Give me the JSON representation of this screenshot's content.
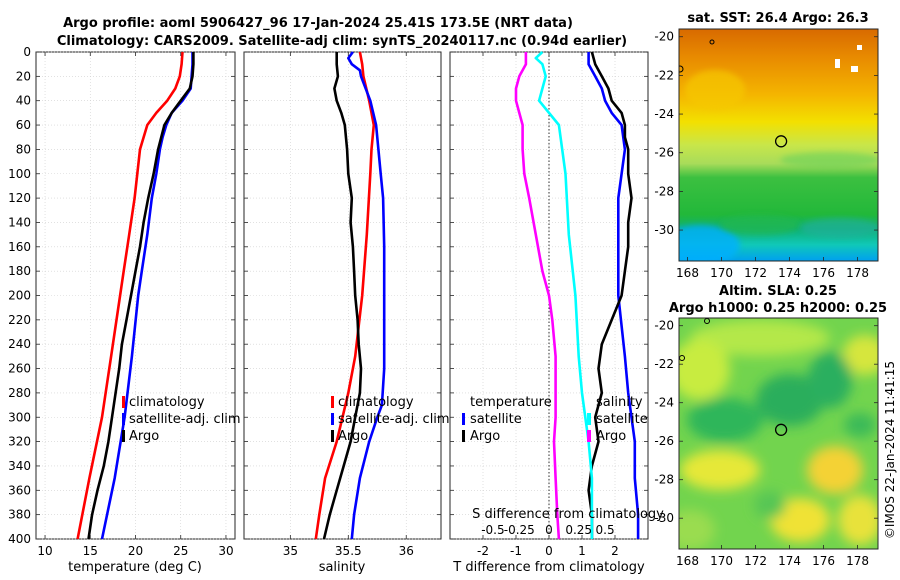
{
  "header": {
    "title_line1": "Argo profile: aoml 5906427_96 17-Jan-2024 25.41S 173.5E (NRT data)",
    "title_line2": "Climatology: CARS2009. Satellite-adj clim: synTS_20240117.nc (0.94d earlier)"
  },
  "colors": {
    "climatology": "#ff0000",
    "satellite": "#0000ff",
    "argo": "#000000",
    "t_diff": "#ff00ff",
    "s_diff": "#00ffff"
  },
  "chart_data": [
    {
      "type": "line",
      "title": "",
      "xlabel": "temperature (deg C)",
      "ylabel": "",
      "xlim": [
        9,
        31
      ],
      "ylim": [
        400,
        0
      ],
      "xticks": [
        10,
        15,
        20,
        25,
        30
      ],
      "yticks": [
        0,
        20,
        40,
        60,
        80,
        100,
        120,
        140,
        160,
        180,
        200,
        220,
        240,
        260,
        280,
        300,
        320,
        340,
        360,
        380,
        400
      ],
      "grid": true,
      "legend": {
        "position": "lower-right",
        "entries": [
          "climatology",
          "satellite-adj. clim",
          "Argo"
        ]
      },
      "series": [
        {
          "name": "climatology",
          "color": "#ff0000",
          "depth": [
            0,
            10,
            20,
            30,
            40,
            50,
            60,
            80,
            100,
            120,
            150,
            180,
            200,
            250,
            300,
            350,
            400
          ],
          "values": [
            25.2,
            25.1,
            24.9,
            24.4,
            23.5,
            22.3,
            21.3,
            20.5,
            20.2,
            19.9,
            19.3,
            18.7,
            18.3,
            17.3,
            16.3,
            14.9,
            13.6
          ]
        },
        {
          "name": "satellite-adj. clim",
          "color": "#0000ff",
          "depth": [
            0,
            10,
            20,
            30,
            40,
            50,
            60,
            70,
            80,
            100,
            120,
            150,
            180,
            200,
            250,
            300,
            350,
            400
          ],
          "values": [
            26.3,
            26.3,
            26.2,
            26.1,
            25.2,
            24.0,
            23.4,
            23.0,
            22.7,
            22.3,
            21.8,
            21.3,
            20.7,
            20.3,
            19.6,
            18.8,
            17.7,
            16.3
          ]
        },
        {
          "name": "Argo",
          "color": "#000000",
          "depth": [
            0,
            10,
            20,
            30,
            40,
            50,
            60,
            80,
            100,
            120,
            140,
            160,
            180,
            200,
            220,
            240,
            260,
            280,
            300,
            320,
            340,
            360,
            380,
            400
          ],
          "values": [
            26.4,
            26.4,
            26.3,
            26.0,
            25.0,
            24.0,
            23.2,
            22.5,
            22.0,
            21.4,
            20.9,
            20.5,
            20.0,
            19.5,
            19.0,
            18.5,
            18.2,
            17.8,
            17.4,
            17.0,
            16.5,
            15.8,
            15.2,
            14.8
          ]
        }
      ]
    },
    {
      "type": "line",
      "title": "",
      "xlabel": "salinity",
      "ylabel": "",
      "xlim": [
        34.6,
        36.3
      ],
      "ylim": [
        400,
        0
      ],
      "xticks": [
        35,
        35.5,
        36
      ],
      "xtick_labels": [
        "35",
        "35.5",
        "36"
      ],
      "yticks": [
        0,
        20,
        40,
        60,
        80,
        100,
        120,
        140,
        160,
        180,
        200,
        220,
        240,
        260,
        280,
        300,
        320,
        340,
        360,
        380,
        400
      ],
      "grid": true,
      "legend": {
        "position": "lower-right",
        "entries": [
          "climatology",
          "satellite-adj. clim",
          "Argo"
        ]
      },
      "series": [
        {
          "name": "climatology",
          "color": "#ff0000",
          "depth": [
            0,
            10,
            20,
            40,
            60,
            80,
            100,
            150,
            200,
            250,
            280,
            300,
            320,
            350,
            380,
            400
          ],
          "values": [
            35.6,
            35.62,
            35.63,
            35.68,
            35.72,
            35.7,
            35.69,
            35.66,
            35.62,
            35.56,
            35.5,
            35.45,
            35.4,
            35.3,
            35.25,
            35.22
          ]
        },
        {
          "name": "satellite-adj. clim",
          "color": "#0000ff",
          "depth": [
            0,
            5,
            10,
            15,
            20,
            40,
            60,
            80,
            100,
            120,
            160,
            200,
            260,
            290,
            300,
            320,
            350,
            380,
            400
          ],
          "values": [
            35.54,
            35.5,
            35.53,
            35.6,
            35.61,
            35.69,
            35.74,
            35.76,
            35.78,
            35.8,
            35.81,
            35.81,
            35.81,
            35.79,
            35.75,
            35.68,
            35.6,
            35.55,
            35.53
          ]
        },
        {
          "name": "Argo",
          "color": "#000000",
          "depth": [
            0,
            10,
            20,
            30,
            40,
            50,
            60,
            80,
            100,
            120,
            140,
            160,
            180,
            200,
            220,
            240,
            260,
            280,
            300,
            320,
            340,
            360,
            380,
            400
          ],
          "values": [
            35.4,
            35.4,
            35.41,
            35.38,
            35.4,
            35.44,
            35.47,
            35.49,
            35.5,
            35.53,
            35.52,
            35.54,
            35.55,
            35.56,
            35.58,
            35.59,
            35.61,
            35.6,
            35.56,
            35.52,
            35.46,
            35.4,
            35.34,
            35.29
          ]
        }
      ]
    },
    {
      "type": "line",
      "title": "",
      "xlabel": "T difference from climatology",
      "ylabel": "",
      "xlim": [
        -3,
        3
      ],
      "ylim": [
        400,
        0
      ],
      "xticks": [
        -2,
        -1,
        0,
        1,
        2
      ],
      "secondary_axis": {
        "label": "S difference from climatology",
        "tick_labels": [
          "-0.5",
          "-0.25",
          "0",
          "0.25",
          "0.5"
        ],
        "tick_positions_T_units": [
          -1.7,
          -0.9,
          0,
          0.9,
          1.7
        ]
      },
      "yticks": [
        0,
        20,
        40,
        60,
        80,
        100,
        120,
        140,
        160,
        180,
        200,
        220,
        240,
        260,
        280,
        300,
        320,
        340,
        360,
        380,
        400
      ],
      "grid": true,
      "legend": {
        "position": "lower-center",
        "left_header": "temperature",
        "right_header": "salinity",
        "left_entries": [
          "satellite",
          "Argo"
        ],
        "right_entries": [
          "satellite",
          "Argo"
        ]
      },
      "series": [
        {
          "name": "T satellite",
          "color": "#0000ff",
          "depth": [
            0,
            10,
            20,
            30,
            40,
            50,
            60,
            80,
            100,
            120,
            150,
            180,
            200,
            250,
            280,
            300,
            320,
            350,
            380,
            400
          ],
          "values": [
            1.2,
            1.2,
            1.4,
            1.6,
            1.7,
            1.9,
            2.2,
            2.3,
            2.2,
            2.1,
            2.1,
            2.1,
            2.1,
            2.3,
            2.4,
            2.5,
            2.6,
            2.6,
            2.7,
            2.7
          ]
        },
        {
          "name": "T Argo",
          "color": "#000000",
          "depth": [
            0,
            10,
            20,
            30,
            40,
            50,
            60,
            70,
            80,
            100,
            120,
            140,
            160,
            180,
            200,
            220,
            240,
            260,
            280,
            300,
            320,
            340,
            360,
            380,
            400
          ],
          "values": [
            1.3,
            1.4,
            1.6,
            1.8,
            1.9,
            2.2,
            2.3,
            2.3,
            2.4,
            2.4,
            2.5,
            2.4,
            2.4,
            2.3,
            2.2,
            1.9,
            1.6,
            1.5,
            1.6,
            1.4,
            1.5,
            1.3,
            1.2,
            1.3,
            1.3
          ]
        },
        {
          "name": "S satellite",
          "color": "#00ffff",
          "depth": [
            0,
            5,
            10,
            20,
            30,
            40,
            60,
            80,
            100,
            150,
            200,
            250,
            280,
            300,
            320,
            350,
            380,
            400
          ],
          "values": [
            -0.2,
            -0.4,
            -0.2,
            -0.1,
            -0.2,
            -0.3,
            0.3,
            0.4,
            0.5,
            0.6,
            0.8,
            0.9,
            1.0,
            1.1,
            1.2,
            1.3,
            1.3,
            1.3
          ]
        },
        {
          "name": "S Argo",
          "color": "#ff00ff",
          "depth": [
            0,
            10,
            20,
            30,
            40,
            50,
            60,
            80,
            100,
            120,
            150,
            180,
            200,
            220,
            250,
            280,
            300,
            320,
            350,
            380,
            400
          ],
          "values": [
            -0.7,
            -0.7,
            -0.9,
            -1.0,
            -1.0,
            -0.9,
            -0.8,
            -0.8,
            -0.75,
            -0.6,
            -0.4,
            -0.2,
            0.0,
            0.1,
            0.2,
            0.2,
            0.2,
            0.15,
            0.2,
            0.25,
            0.3
          ]
        }
      ]
    },
    {
      "type": "heatmap",
      "title": "sat. SST: 26.4 Argo: 26.3",
      "xlim": [
        167.5,
        179.2
      ],
      "ylim": [
        -31.6,
        -19.6
      ],
      "xticks": [
        168,
        170,
        172,
        174,
        176,
        178
      ],
      "yticks": [
        -20,
        -22,
        -24,
        -26,
        -28,
        -30
      ],
      "marker": {
        "lon": 173.5,
        "lat": -25.41
      }
    },
    {
      "type": "heatmap",
      "title_line1": "Altim. SLA: 0.25",
      "title_line2": "Argo h1000: 0.25 h2000: 0.25",
      "xlim": [
        167.5,
        179.2
      ],
      "ylim": [
        -31.6,
        -19.6
      ],
      "xticks": [
        168,
        170,
        172,
        174,
        176,
        178
      ],
      "yticks": [
        -20,
        -22,
        -24,
        -26,
        -28,
        -30
      ],
      "marker": {
        "lon": 173.5,
        "lat": -25.41
      }
    }
  ],
  "credit": "©IMOS 22-Jan-2024 11:41:15"
}
